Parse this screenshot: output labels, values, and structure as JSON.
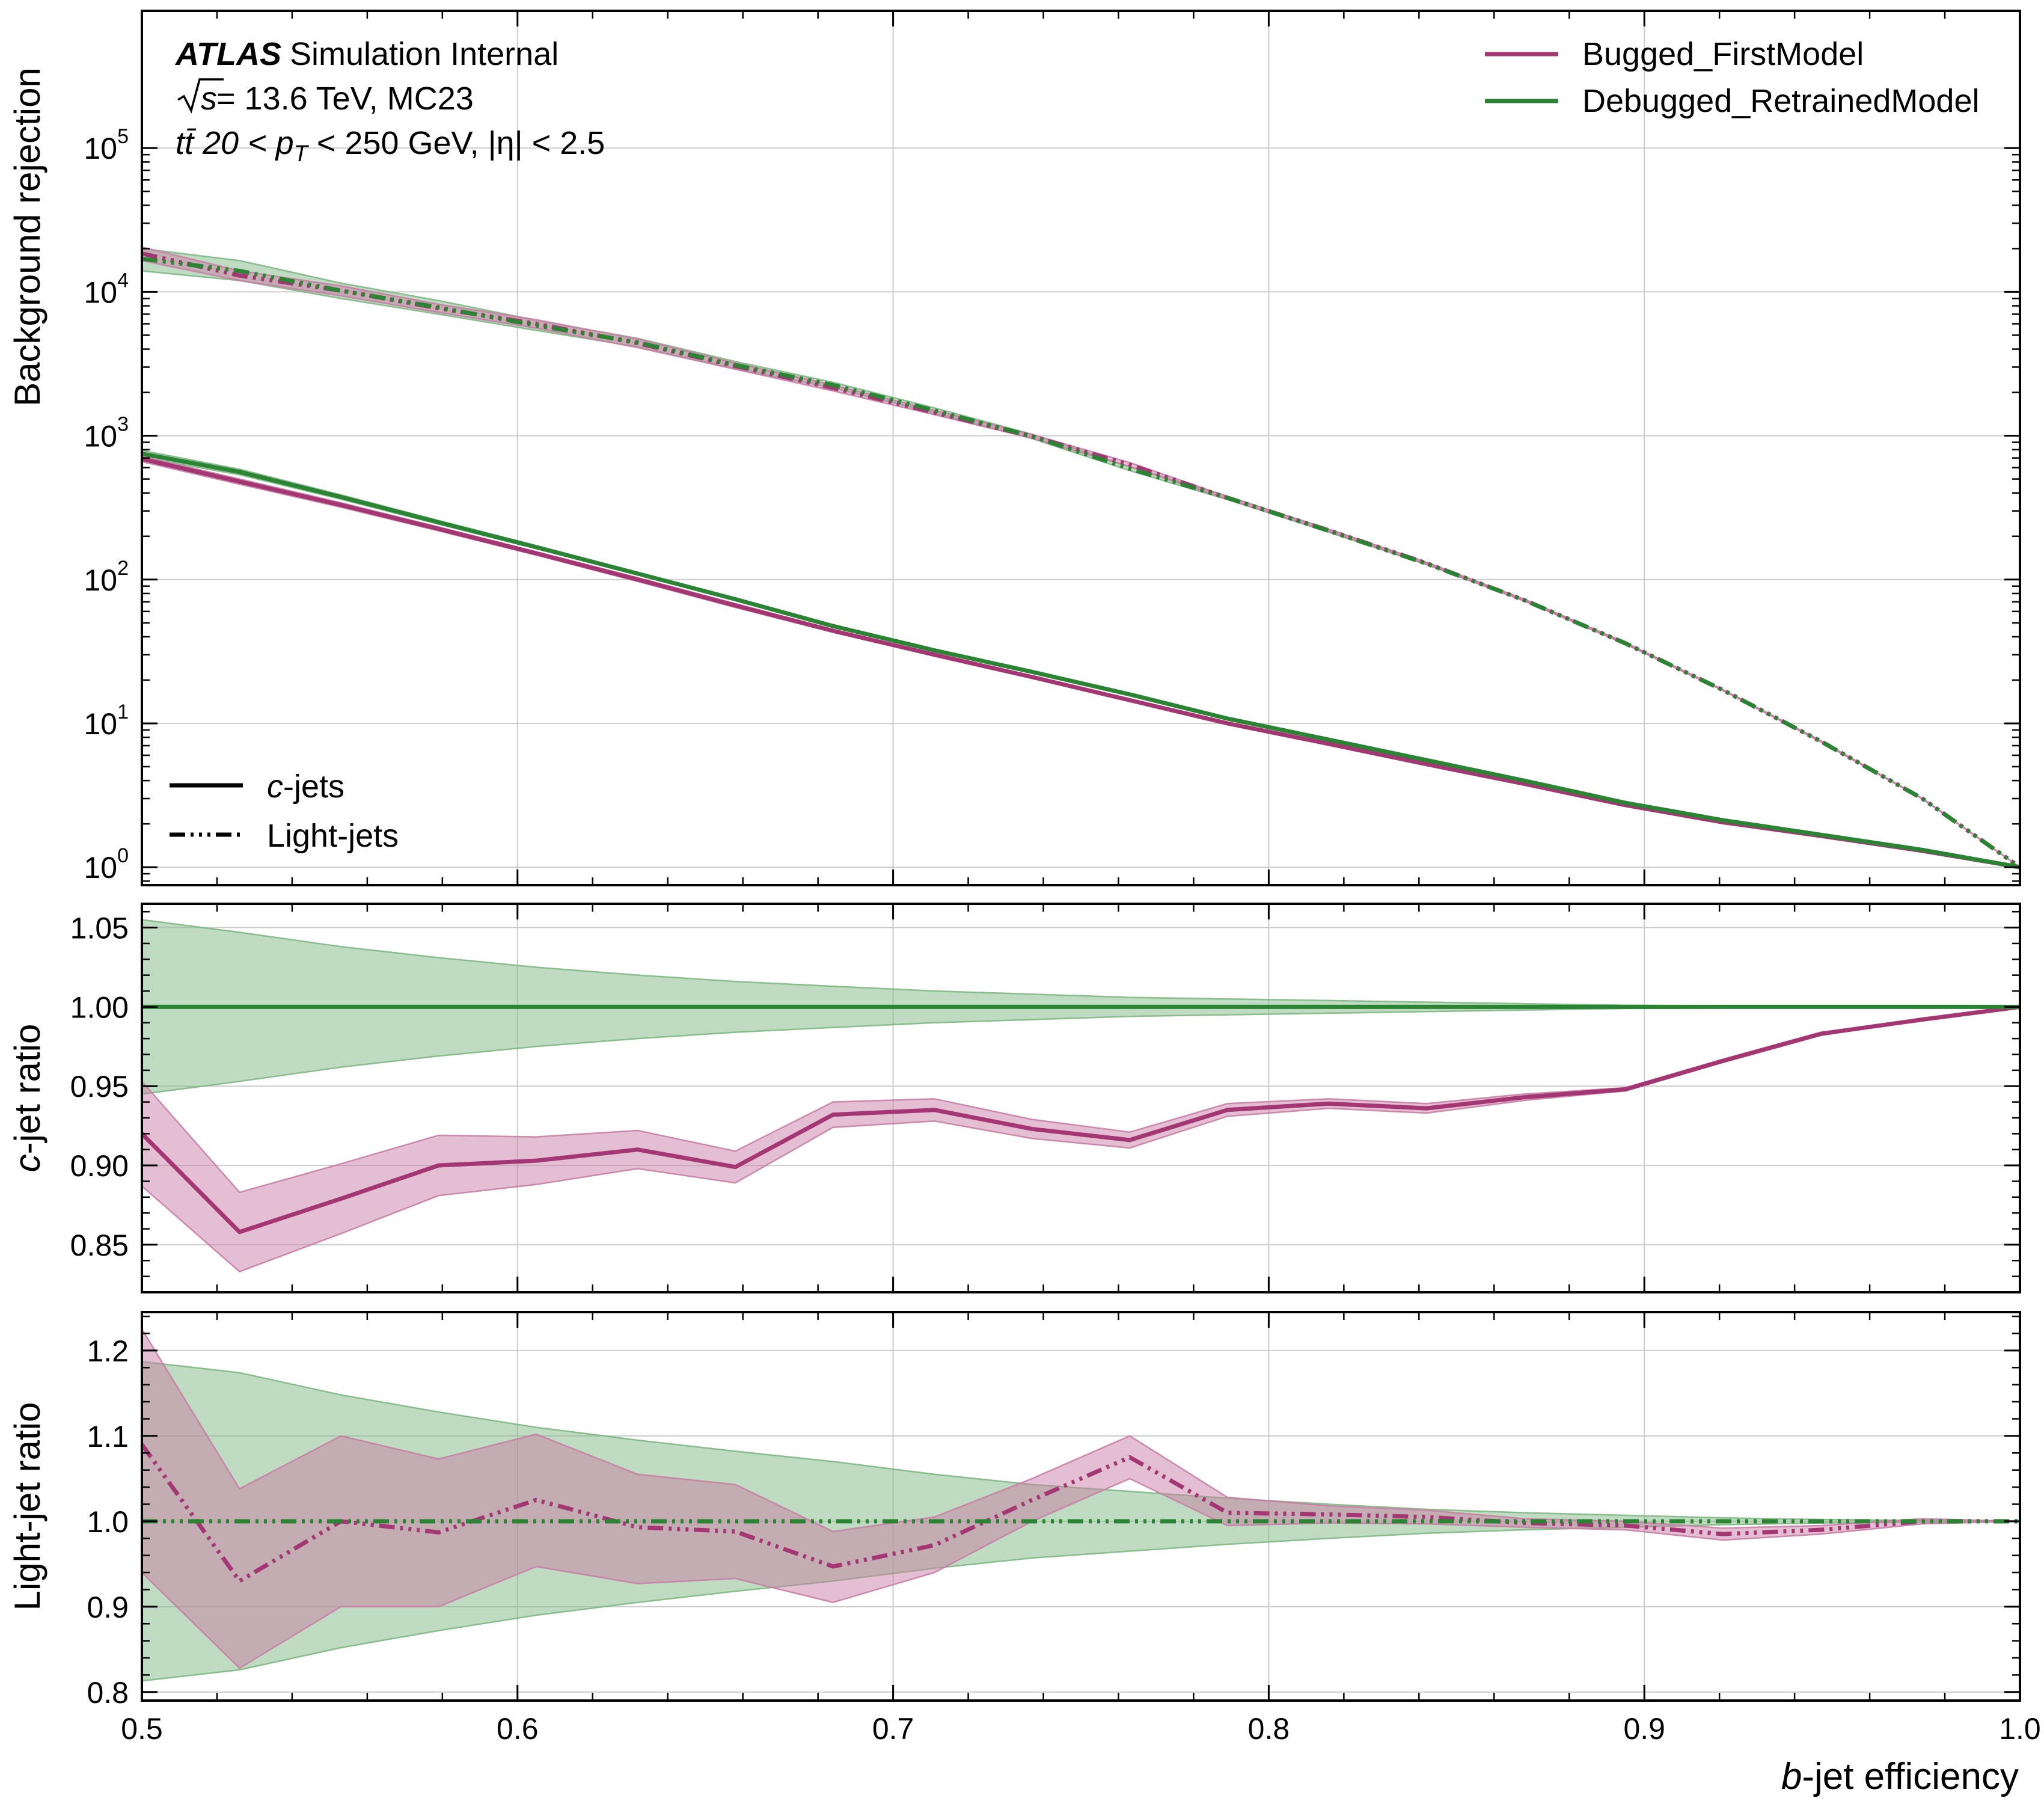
{
  "annotations": {
    "atlas": "ATLAS",
    "atlas_suffix": "Simulation Internal",
    "energy_sqrt": "s",
    "energy_rest": " = 13.6 TeV, MC23",
    "sample": "tt̄ 20 < p",
    "sample_sub": "T",
    "sample_rest": " < 250 GeV, |η| < 2.5"
  },
  "legend_models": [
    {
      "label": "Bugged_FirstModel",
      "color": "#a33673"
    },
    {
      "label": "Debugged_RetrainedModel",
      "color": "#2b8334"
    }
  ],
  "legend_styles": [
    {
      "italic": "c",
      "rest": "-jets",
      "style": "solid"
    },
    {
      "italic": "",
      "rest": "Light-jets",
      "style": "dashdot"
    }
  ],
  "colors": {
    "bugged": "#a33673",
    "bugged_band": "#c97ea6",
    "debugged": "#2b8334",
    "debugged_band": "#7fb884",
    "grid": "#cccccc"
  },
  "chart_data": [
    {
      "type": "line",
      "panel": "main",
      "ylabel": "Background rejection",
      "yscale": "log",
      "ylim": [
        0.75,
        900000
      ],
      "xlim": [
        0.5,
        1.0
      ],
      "grid": true,
      "yticks": [
        {
          "base": "10",
          "exp": "0",
          "value": 1
        },
        {
          "base": "10",
          "exp": "1",
          "value": 10
        },
        {
          "base": "10",
          "exp": "2",
          "value": 100
        },
        {
          "base": "10",
          "exp": "3",
          "value": 1000
        },
        {
          "base": "10",
          "exp": "4",
          "value": 10000
        },
        {
          "base": "10",
          "exp": "5",
          "value": 100000
        }
      ],
      "x": [
        0.5,
        0.526,
        0.553,
        0.579,
        0.605,
        0.632,
        0.658,
        0.684,
        0.711,
        0.737,
        0.763,
        0.789,
        0.816,
        0.842,
        0.868,
        0.895,
        0.921,
        0.947,
        0.974,
        1.0
      ],
      "series": [
        {
          "model": "Bugged_FirstModel",
          "jets": "c-jets",
          "style": "solid",
          "values": [
            690,
            480,
            330,
            225,
            152,
            100,
            66,
            44,
            30,
            21,
            14.5,
            10,
            7.2,
            5.2,
            3.8,
            2.7,
            2.05,
            1.65,
            1.3,
            1.0
          ],
          "band_lo": [
            660,
            460,
            318,
            218,
            148,
            97,
            64,
            43,
            29.5,
            20.6,
            14.2,
            9.8,
            7.1,
            5.15,
            3.77,
            2.69,
            2.04,
            1.64,
            1.3,
            1.0
          ],
          "band_hi": [
            720,
            500,
            342,
            232,
            156,
            103,
            68,
            45,
            30.5,
            21.4,
            14.8,
            10.2,
            7.3,
            5.25,
            3.83,
            2.71,
            2.06,
            1.66,
            1.3,
            1.0
          ]
        },
        {
          "model": "Debugged_RetrainedModel",
          "jets": "c-jets",
          "style": "solid",
          "values": [
            750,
            560,
            375,
            250,
            168,
            110,
            73,
            47.5,
            32.2,
            22.8,
            15.9,
            10.8,
            7.7,
            5.55,
            4.0,
            2.8,
            2.12,
            1.68,
            1.32,
            1.0
          ],
          "band_lo": [
            710,
            535,
            362,
            243,
            164,
            108,
            72,
            47,
            31.9,
            22.6,
            15.8,
            10.75,
            7.68,
            5.54,
            4.0,
            2.8,
            2.12,
            1.68,
            1.32,
            1.0
          ],
          "band_hi": [
            790,
            585,
            388,
            257,
            172,
            112,
            74,
            48,
            32.5,
            23.0,
            16.0,
            10.85,
            7.72,
            5.56,
            4.0,
            2.8,
            2.12,
            1.68,
            1.32,
            1.0
          ]
        },
        {
          "model": "Bugged_FirstModel",
          "jets": "Light-jets",
          "style": "dashdot",
          "values": [
            18500,
            13000,
            10200,
            7700,
            6000,
            4400,
            3050,
            2150,
            1450,
            990,
            630,
            370,
            220,
            130,
            72,
            36,
            17,
            7.5,
            3.0,
            1.0
          ],
          "band_lo": [
            16500,
            12000,
            9400,
            7200,
            5600,
            4100,
            2900,
            2050,
            1400,
            960,
            610,
            362,
            216,
            128,
            71,
            35.6,
            16.9,
            7.45,
            2.99,
            1.0
          ],
          "band_hi": [
            20500,
            14000,
            11000,
            8200,
            6400,
            4700,
            3200,
            2250,
            1500,
            1020,
            650,
            378,
            224,
            132,
            73,
            36.4,
            17.1,
            7.55,
            3.01,
            1.0
          ]
        },
        {
          "model": "Debugged_RetrainedModel",
          "jets": "Light-jets",
          "style": "dashdot",
          "values": [
            17000,
            14000,
            10200,
            7800,
            5850,
            4450,
            3100,
            2250,
            1500,
            990,
            590,
            370,
            218,
            129,
            72,
            36,
            17,
            7.5,
            3.0,
            1.0
          ],
          "band_lo": [
            14000,
            12000,
            9000,
            7000,
            5400,
            4150,
            2920,
            2150,
            1440,
            955,
            572,
            360,
            213,
            127,
            71,
            35.6,
            16.9,
            7.45,
            2.99,
            1.0
          ],
          "band_hi": [
            20000,
            16500,
            11500,
            8700,
            6350,
            4750,
            3280,
            2350,
            1560,
            1025,
            608,
            380,
            223,
            131,
            73,
            36.4,
            17.1,
            7.55,
            3.01,
            1.0
          ]
        }
      ]
    },
    {
      "type": "line",
      "panel": "c-ratio",
      "ylabel_italic": "c",
      "ylabel_rest": "-jet ratio",
      "ylim": [
        0.82,
        1.065
      ],
      "xlim": [
        0.5,
        1.0
      ],
      "grid": true,
      "yticks": [
        "0.85",
        "0.90",
        "0.95",
        "1.00",
        "1.05"
      ],
      "x": [
        0.5,
        0.526,
        0.553,
        0.579,
        0.605,
        0.632,
        0.658,
        0.684,
        0.711,
        0.737,
        0.763,
        0.789,
        0.816,
        0.842,
        0.868,
        0.895,
        0.921,
        0.947,
        0.974,
        1.0
      ],
      "series": [
        {
          "model": "Bugged_FirstModel",
          "values": [
            0.92,
            0.858,
            0.879,
            0.9,
            0.903,
            0.91,
            0.899,
            0.932,
            0.935,
            0.923,
            0.916,
            0.935,
            0.939,
            0.936,
            0.943,
            0.948,
            0.966,
            0.983,
            0.992,
            1.0
          ],
          "band_lo": [
            0.887,
            0.833,
            0.857,
            0.881,
            0.888,
            0.898,
            0.889,
            0.924,
            0.928,
            0.917,
            0.911,
            0.931,
            0.936,
            0.933,
            0.941,
            0.947,
            0.965,
            0.982,
            0.992,
            1.0
          ],
          "band_hi": [
            0.953,
            0.883,
            0.901,
            0.919,
            0.918,
            0.922,
            0.909,
            0.94,
            0.942,
            0.929,
            0.921,
            0.939,
            0.942,
            0.939,
            0.945,
            0.949,
            0.967,
            0.984,
            0.992,
            1.0
          ]
        },
        {
          "model": "Debugged_RetrainedModel",
          "values": [
            1.0,
            1.0,
            1.0,
            1.0,
            1.0,
            1.0,
            1.0,
            1.0,
            1.0,
            1.0,
            1.0,
            1.0,
            1.0,
            1.0,
            1.0,
            1.0,
            1.0,
            1.0,
            1.0,
            1.0
          ],
          "band_lo": [
            0.945,
            0.953,
            0.962,
            0.969,
            0.975,
            0.98,
            0.984,
            0.987,
            0.99,
            0.992,
            0.994,
            0.995,
            0.996,
            0.997,
            0.998,
            0.999,
            0.9993,
            0.9996,
            0.9998,
            1.0
          ],
          "band_hi": [
            1.055,
            1.047,
            1.038,
            1.031,
            1.025,
            1.02,
            1.016,
            1.013,
            1.01,
            1.008,
            1.006,
            1.005,
            1.004,
            1.003,
            1.002,
            1.001,
            1.0007,
            1.0004,
            1.0002,
            1.0
          ]
        }
      ]
    },
    {
      "type": "line",
      "panel": "light-ratio",
      "ylabel": "Light-jet ratio",
      "ylim": [
        0.79,
        1.245
      ],
      "xlim": [
        0.5,
        1.0
      ],
      "grid": true,
      "yticks": [
        "0.8",
        "0.9",
        "1.0",
        "1.1",
        "1.2"
      ],
      "xlabel_italic": "b",
      "xlabel_rest": "-jet efficiency",
      "xticks": [
        "0.5",
        "0.6",
        "0.7",
        "0.8",
        "0.9",
        "1.0"
      ],
      "x": [
        0.5,
        0.526,
        0.553,
        0.579,
        0.605,
        0.632,
        0.658,
        0.684,
        0.711,
        0.737,
        0.763,
        0.789,
        0.816,
        0.842,
        0.868,
        0.895,
        0.921,
        0.947,
        0.974,
        1.0
      ],
      "series": [
        {
          "model": "Bugged_FirstModel",
          "values": [
            1.09,
            0.93,
            1.0,
            0.987,
            1.025,
            0.993,
            0.988,
            0.947,
            0.972,
            1.025,
            1.075,
            1.01,
            1.008,
            1.005,
            0.998,
            0.995,
            0.985,
            0.99,
            1.0,
            1.0
          ],
          "band_lo": [
            0.94,
            0.828,
            0.9,
            0.9,
            0.947,
            0.927,
            0.933,
            0.905,
            0.94,
            1.0,
            1.05,
            0.995,
            0.998,
            0.997,
            0.993,
            0.99,
            0.978,
            0.985,
            0.997,
            1.0
          ],
          "band_hi": [
            1.225,
            1.038,
            1.1,
            1.073,
            1.102,
            1.055,
            1.043,
            0.988,
            1.005,
            1.05,
            1.1,
            1.028,
            1.018,
            1.013,
            1.003,
            1.0,
            0.992,
            0.995,
            1.003,
            1.0
          ]
        },
        {
          "model": "Debugged_RetrainedModel",
          "values": [
            1.0,
            1.0,
            1.0,
            1.0,
            1.0,
            1.0,
            1.0,
            1.0,
            1.0,
            1.0,
            1.0,
            1.0,
            1.0,
            1.0,
            1.0,
            1.0,
            1.0,
            1.0,
            1.0,
            1.0
          ],
          "band_lo": [
            0.813,
            0.826,
            0.852,
            0.872,
            0.89,
            0.905,
            0.918,
            0.93,
            0.945,
            0.957,
            0.965,
            0.973,
            0.98,
            0.986,
            0.99,
            0.993,
            0.996,
            0.998,
            0.999,
            1.0
          ],
          "band_hi": [
            1.187,
            1.174,
            1.148,
            1.128,
            1.11,
            1.095,
            1.082,
            1.07,
            1.055,
            1.043,
            1.035,
            1.027,
            1.02,
            1.014,
            1.01,
            1.007,
            1.004,
            1.002,
            1.001,
            1.0
          ]
        }
      ]
    }
  ]
}
